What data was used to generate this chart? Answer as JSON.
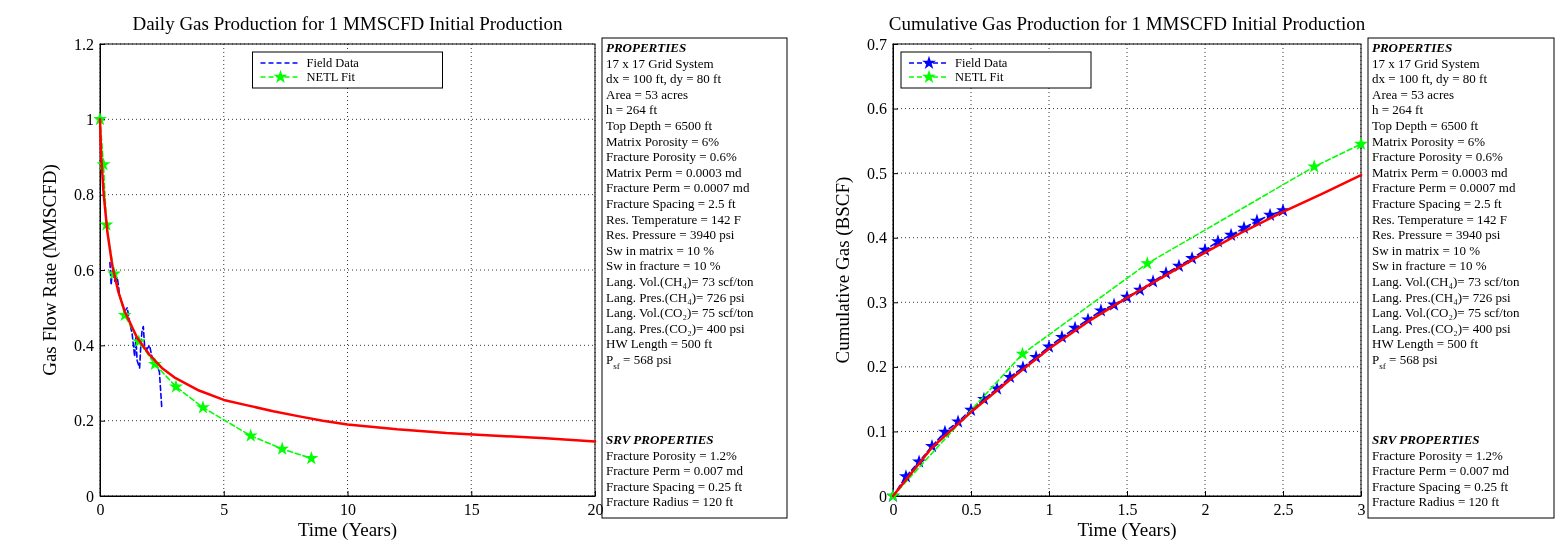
{
  "chart_data": [
    {
      "type": "line",
      "title": "Daily Gas Production for 1 MMSCFD Initial Production",
      "xlabel": "Time (Years)",
      "ylabel": "Gas Flow Rate (MMSCFD)",
      "xlim": [
        0,
        20
      ],
      "xticks": [
        0,
        5,
        10,
        15,
        20
      ],
      "ylim": [
        0,
        1.2
      ],
      "yticks": [
        0,
        0.2,
        0.4,
        0.6,
        0.8,
        1,
        1.2
      ],
      "grid": true,
      "legend": "top",
      "series": [
        {
          "name": "Field Data",
          "color": "#0000ff",
          "line_style": "dashed",
          "marker": "none",
          "x": [
            0.4,
            0.45,
            0.5,
            0.6,
            0.7,
            0.8,
            1.0,
            1.1,
            1.2,
            1.3,
            1.4,
            1.45,
            1.5,
            1.6,
            1.65,
            1.7,
            1.75,
            1.8,
            1.9,
            2.0,
            2.1,
            2.2,
            2.4,
            2.5
          ],
          "values": [
            0.62,
            0.56,
            0.6,
            0.57,
            0.58,
            0.53,
            0.49,
            0.5,
            0.46,
            0.43,
            0.37,
            0.42,
            0.36,
            0.34,
            0.4,
            0.44,
            0.45,
            0.4,
            0.39,
            0.4,
            0.37,
            0.36,
            0.33,
            0.23
          ]
        },
        {
          "name": "NETL Fit",
          "color": "#00ff00",
          "line_style": "dashed",
          "marker": "star",
          "x": [
            0,
            0.14,
            0.26,
            0.57,
            1.0,
            1.57,
            2.22,
            3.07,
            4.16,
            6.09,
            7.36,
            8.54
          ],
          "values": [
            1.0,
            0.88,
            0.72,
            0.59,
            0.48,
            0.41,
            0.35,
            0.29,
            0.235,
            0.16,
            0.125,
            0.1
          ]
        },
        {
          "color": "#ff0000",
          "line_style": "solid",
          "marker": "none",
          "x": [
            0,
            0.05,
            0.15,
            0.3,
            0.5,
            0.75,
            1,
            1.5,
            2,
            2.5,
            3,
            4,
            5,
            6,
            7,
            8,
            9,
            10,
            12,
            14,
            16,
            18,
            20
          ],
          "values": [
            1.0,
            0.9,
            0.8,
            0.7,
            0.61,
            0.54,
            0.49,
            0.42,
            0.375,
            0.34,
            0.315,
            0.28,
            0.255,
            0.24,
            0.225,
            0.212,
            0.2,
            0.19,
            0.177,
            0.167,
            0.16,
            0.153,
            0.145
          ]
        }
      ]
    },
    {
      "type": "other",
      "title": "PROPERTIES",
      "annotations": [
        "17 x 17 Grid System",
        "dx = 100 ft, dy = 80 ft",
        "Area = 53 acres",
        "h = 264 ft",
        "Top Depth = 6500 ft",
        "Matrix Porosity = 6%",
        "Fracture Porosity = 0.6%",
        "Matrix Perm = 0.0003 md",
        "Fracture Perm = 0.0007 md",
        "Fracture Spacing = 2.5 ft",
        "Res. Temperature = 142 F",
        "Res. Pressure = 3940 psi",
        "Sw in matrix = 10 %",
        "Sw in fracture = 10 %",
        "Lang. Vol.(CH₄)= 73 scf/ton",
        "Lang. Pres.(CH₄)= 726 psi",
        "Lang. Vol.(CO₂)= 75 scf/ton",
        "Lang. Pres.(CO₂)= 400 psi",
        "HW Length = 500 ft",
        "P$_{sf}$ = 568 psi"
      ]
    },
    {
      "type": "other",
      "title": "SRV PROPERTIES",
      "annotations": [
        "Fracture Porosity = 1.2%",
        "Fracture Perm = 0.007 md",
        "Fracture Spacing = 0.25 ft",
        "Fracture Radius = 120 ft"
      ]
    },
    {
      "type": "line",
      "title": "Cumulative Gas Production for 1 MMSCFD Initial Production",
      "xlabel": "Time (Years)",
      "ylabel": "Cumulative Gas (BSCF)",
      "xlim": [
        0,
        3
      ],
      "xticks": [
        0,
        0.5,
        1,
        1.5,
        2,
        2.5,
        3
      ],
      "ylim": [
        0,
        0.7
      ],
      "yticks": [
        0,
        0.1,
        0.2,
        0.3,
        0.4,
        0.5,
        0.6,
        0.7
      ],
      "grid": true,
      "legend": "top left",
      "series": [
        {
          "name": "Field Data",
          "color": "#0000ff",
          "line_style": "dashed",
          "marker": "star",
          "x": [
            0,
            0.083,
            0.167,
            0.25,
            0.333,
            0.417,
            0.5,
            0.583,
            0.667,
            0.75,
            0.833,
            0.917,
            1.0,
            1.083,
            1.167,
            1.25,
            1.333,
            1.417,
            1.5,
            1.583,
            1.667,
            1.75,
            1.833,
            1.917,
            2.0,
            2.083,
            2.167,
            2.25,
            2.333,
            2.417,
            2.5
          ],
          "values": [
            0,
            0.03,
            0.053,
            0.077,
            0.099,
            0.115,
            0.133,
            0.15,
            0.166,
            0.184,
            0.199,
            0.215,
            0.231,
            0.246,
            0.26,
            0.273,
            0.287,
            0.296,
            0.308,
            0.319,
            0.332,
            0.345,
            0.356,
            0.368,
            0.381,
            0.394,
            0.404,
            0.415,
            0.426,
            0.435,
            0.442
          ]
        },
        {
          "name": "NETL Fit",
          "color": "#00ff00",
          "line_style": "dashed",
          "marker": "star",
          "x": [
            0,
            0.83,
            1.63,
            2.7,
            3
          ],
          "values": [
            0,
            0.22,
            0.36,
            0.51,
            0.545
          ]
        },
        {
          "color": "#ff0000",
          "line_style": "solid",
          "marker": "none",
          "x": [
            0,
            0.25,
            0.5,
            0.75,
            1,
            1.25,
            1.5,
            1.75,
            2,
            2.25,
            2.5,
            2.75,
            3
          ],
          "values": [
            0,
            0.075,
            0.13,
            0.18,
            0.228,
            0.27,
            0.307,
            0.342,
            0.377,
            0.41,
            0.44,
            0.468,
            0.497
          ]
        }
      ]
    },
    {
      "type": "other",
      "title": "PROPERTIES",
      "annotations": [
        "17 x 17 Grid System",
        "dx = 100 ft, dy = 80 ft",
        "Area = 53 acres",
        "h = 264 ft",
        "Top Depth = 6500 ft",
        "Matrix Porosity = 6%",
        "Fracture Porosity = 0.6%",
        "Matrix Perm = 0.0003 md",
        "Fracture Perm = 0.0007 md",
        "Fracture Spacing = 2.5 ft",
        "Res. Temperature = 142 F",
        "Res. Pressure = 3940 psi",
        "Sw in matrix = 10 %",
        "Sw in fracture = 10 %",
        "Lang. Vol.(CH₄)= 73 scf/ton",
        "Lang. Pres.(CH₄)= 726 psi",
        "Lang. Vol.(CO₂)= 75 scf/ton",
        "Lang. Pres.(CO₂)= 400 psi",
        "HW Length = 500 ft",
        "P$_{sf}$ = 568 psi"
      ]
    },
    {
      "type": "other",
      "title": "SRV PROPERTIES",
      "annotations": [
        "Fracture Porosity = 1.2%",
        "Fracture Perm = 0.007 md",
        "Fracture Spacing = 0.25 ft",
        "Fracture Radius = 120 ft"
      ]
    }
  ]
}
